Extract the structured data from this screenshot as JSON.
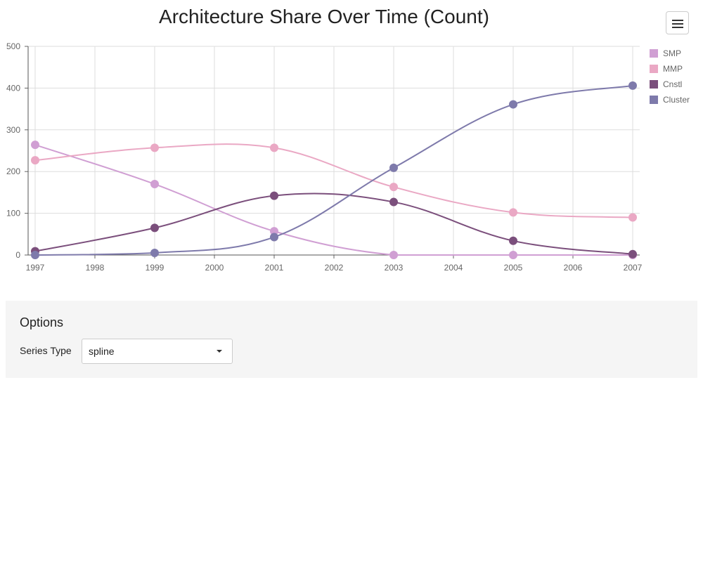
{
  "header": {
    "menu_icon": "hamburger-menu-icon"
  },
  "options": {
    "title": "Options",
    "series_type_label": "Series Type",
    "series_type_value": "spline",
    "dropdown_icon": "caret-down-icon"
  },
  "chart_data": {
    "type": "line",
    "smooth": true,
    "title": "Architecture Share Over Time (Count)",
    "xlabel": "",
    "ylabel": "",
    "x": [
      1997,
      1999,
      2001,
      2003,
      2005,
      2007
    ],
    "x_ticks": [
      "1997",
      "1998",
      "1999",
      "2000",
      "2001",
      "2002",
      "2003",
      "2004",
      "2005",
      "2006",
      "2007"
    ],
    "xlim": [
      1997,
      2007
    ],
    "ylim": [
      0,
      500
    ],
    "y_ticks": [
      "0",
      "100",
      "200",
      "300",
      "400",
      "500"
    ],
    "grid": true,
    "legend_position": "right",
    "series": [
      {
        "name": "SMP",
        "color": "#d09fd3",
        "values": [
          264,
          170,
          57,
          0,
          0,
          0
        ]
      },
      {
        "name": "MMP",
        "color": "#eaa8c4",
        "values": [
          227,
          257,
          257,
          163,
          102,
          90
        ]
      },
      {
        "name": "Cnstl",
        "color": "#7b4f7c",
        "values": [
          9,
          65,
          142,
          127,
          34,
          2
        ]
      },
      {
        "name": "Cluster",
        "color": "#7e7aab",
        "values": [
          0,
          5,
          43,
          209,
          361,
          406
        ]
      }
    ]
  }
}
